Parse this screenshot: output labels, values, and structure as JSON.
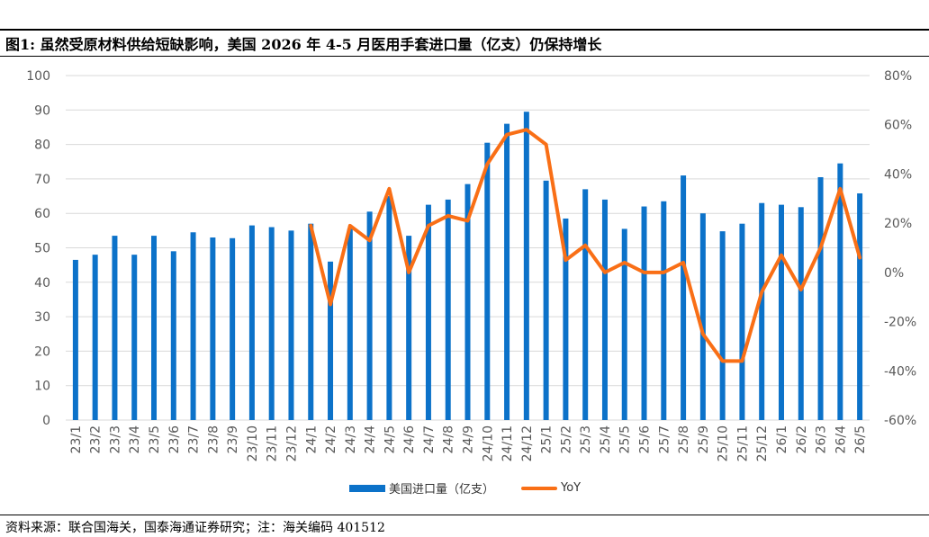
{
  "title": "图1:  虽然受原材料供给短缺影响，美国 2026 年 4-5 月医用手套进口量（亿支）仍保持增长",
  "source": "资料来源：联合国海关，国泰海通证券研究；注：海关编码 401512",
  "colors": {
    "bar": "#0c72c9",
    "line": "#f96f16",
    "axis": "#595959"
  },
  "chart_data": {
    "type": "bar",
    "categories": [
      "23/1",
      "23/2",
      "23/3",
      "23/4",
      "23/5",
      "23/6",
      "23/7",
      "23/8",
      "23/9",
      "23/10",
      "23/11",
      "23/12",
      "24/1",
      "24/2",
      "24/3",
      "24/4",
      "24/5",
      "24/6",
      "24/7",
      "24/8",
      "24/9",
      "24/10",
      "24/11",
      "24/12",
      "25/1",
      "25/2",
      "25/3",
      "25/4",
      "25/5",
      "25/6",
      "25/7",
      "25/8",
      "25/9",
      "25/10",
      "25/11",
      "25/12",
      "26/1",
      "26/2",
      "26/3",
      "26/4",
      "26/5"
    ],
    "series": [
      {
        "name": "美国进口量（亿支）",
        "type": "bar",
        "axis": "left",
        "values": [
          46.5,
          48,
          53.5,
          48,
          53.5,
          49,
          54.5,
          53,
          52.8,
          56.5,
          56,
          55,
          57,
          46,
          55.5,
          60.5,
          65,
          53.5,
          62.5,
          64,
          68.5,
          80.5,
          86,
          89.5,
          69.5,
          58.5,
          67,
          64,
          55.5,
          62,
          63.5,
          71,
          60,
          54.8,
          57,
          63,
          62.5,
          61.8,
          70.5,
          74.5,
          65.8
        ]
      },
      {
        "name": "YoY",
        "type": "line",
        "axis": "right",
        "values": [
          null,
          null,
          null,
          null,
          null,
          null,
          null,
          null,
          null,
          null,
          null,
          null,
          19,
          -13,
          19,
          13,
          34,
          0,
          19,
          23,
          21,
          44,
          56,
          58,
          52,
          5,
          11,
          0,
          4,
          0,
          0,
          4,
          -25,
          -36,
          -36,
          -8,
          7,
          -7,
          10,
          34,
          6
        ]
      }
    ],
    "left_axis": {
      "min": 0,
      "max": 100,
      "ticks": [
        "0",
        "10",
        "20",
        "30",
        "40",
        "50",
        "60",
        "70",
        "80",
        "90",
        "100"
      ]
    },
    "right_axis": {
      "min": -60,
      "max": 80,
      "ticks": [
        "-60%",
        "-40%",
        "-20%",
        "0%",
        "20%",
        "40%",
        "60%",
        "80%"
      ]
    },
    "grid": true,
    "legend": "bottom"
  }
}
